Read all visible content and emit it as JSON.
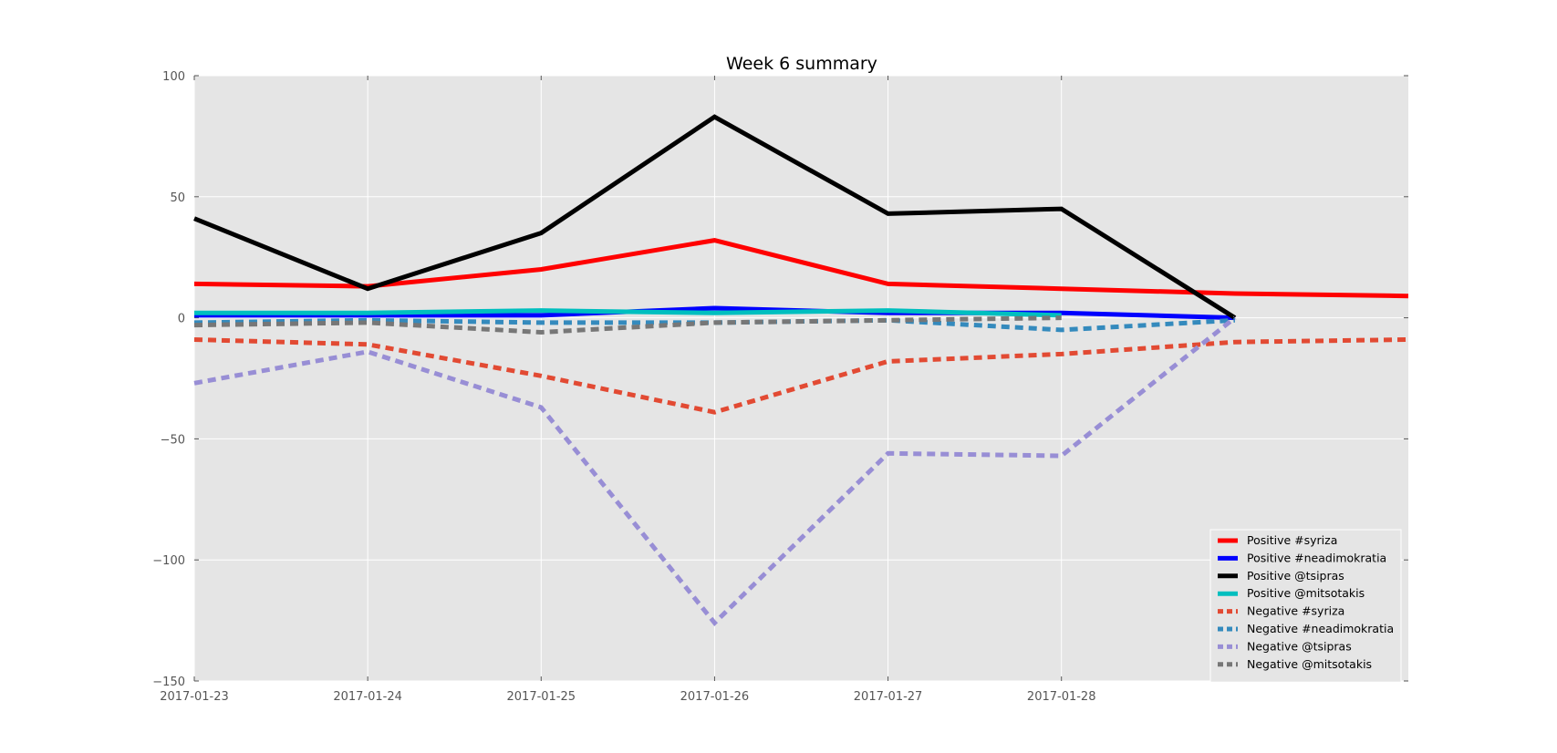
{
  "chart_data": {
    "type": "line",
    "title": "Week 6 summary",
    "xlabel": "",
    "ylabel": "",
    "x": [
      "2017-01-23",
      "2017-01-24",
      "2017-01-25",
      "2017-01-26",
      "2017-01-27",
      "2017-01-28",
      "2017-01-29",
      "2017-01-30"
    ],
    "x_tick_labels": [
      "2017-01-23",
      "2017-01-24",
      "2017-01-25",
      "2017-01-26",
      "2017-01-27",
      "2017-01-28"
    ],
    "ylim": [
      -150,
      100
    ],
    "y_ticks": [
      100,
      50,
      0,
      -50,
      -100,
      -150
    ],
    "y_tick_labels": [
      "100",
      "50",
      "0",
      "−50",
      "−100",
      "−150"
    ],
    "grid": true,
    "legend_position": "bottom-right",
    "series": [
      {
        "name": "Positive #syriza",
        "color": "#ff0000",
        "style": "solid",
        "values": [
          14,
          13,
          20,
          32,
          14,
          12,
          10,
          9
        ]
      },
      {
        "name": "Positive #neadimokratia",
        "color": "#0000ff",
        "style": "solid",
        "values": [
          1,
          1,
          1,
          4,
          2,
          2,
          0,
          null
        ]
      },
      {
        "name": "Positive @tsipras",
        "color": "#000000",
        "style": "solid",
        "values": [
          41,
          12,
          35,
          83,
          43,
          45,
          0,
          null
        ]
      },
      {
        "name": "Positive @mitsotakis",
        "color": "#00bfbf",
        "style": "solid",
        "values": [
          2,
          2,
          3,
          2,
          3,
          1,
          null,
          null
        ]
      },
      {
        "name": "Negative #syriza",
        "color": "#e24a33",
        "style": "dashed",
        "values": [
          -9,
          -11,
          -24,
          -39,
          -18,
          -15,
          -10,
          -9
        ]
      },
      {
        "name": "Negative #neadimokratia",
        "color": "#348abd",
        "style": "dashed",
        "values": [
          -2,
          -1,
          -2,
          -2,
          -1,
          -5,
          -1,
          null
        ]
      },
      {
        "name": "Negative @tsipras",
        "color": "#988ed5",
        "style": "dashed",
        "values": [
          -27,
          -14,
          -37,
          -126,
          -56,
          -57,
          0,
          null
        ]
      },
      {
        "name": "Negative @mitsotakis",
        "color": "#777777",
        "style": "dashed",
        "values": [
          -3,
          -2,
          -6,
          -2,
          -1,
          0,
          null,
          null
        ]
      }
    ]
  }
}
